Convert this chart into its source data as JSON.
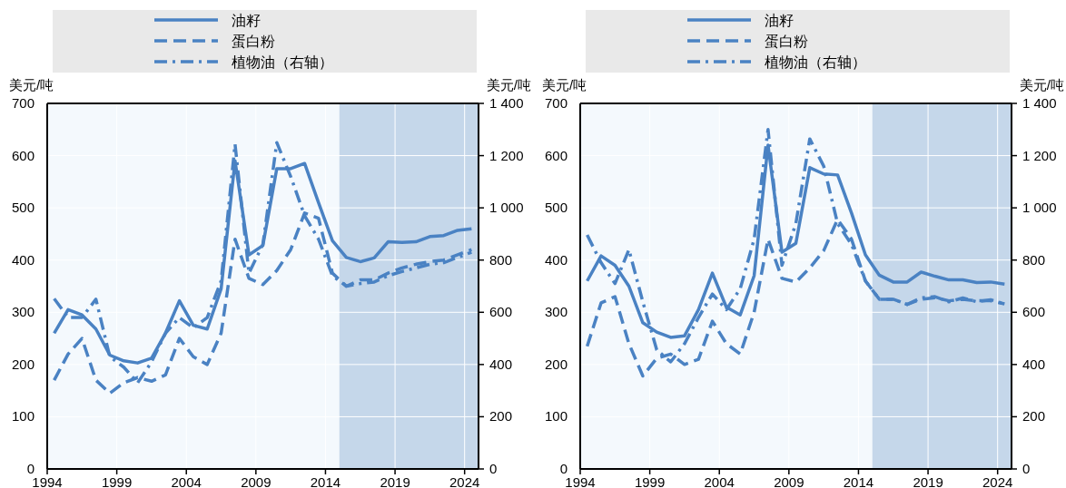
{
  "chart_data": [
    {
      "type": "line",
      "ylabel": "美元/吨",
      "y2label": "美元/吨",
      "legend": "top",
      "grid": true,
      "xlim": [
        1994,
        2025
      ],
      "xticks": [
        1994,
        1999,
        2004,
        2009,
        2014,
        2019,
        2024
      ],
      "ylim": [
        0,
        700
      ],
      "yticks": [
        0,
        100,
        200,
        300,
        400,
        500,
        600,
        700
      ],
      "y2lim": [
        0,
        1400
      ],
      "y2ticks": [
        0,
        200,
        400,
        600,
        800,
        {
          "value": 1000,
          "label": "1 000"
        },
        {
          "value": 1200,
          "label": "1 200"
        },
        {
          "value": 1400,
          "label": "1 400"
        }
      ],
      "x": [
        1994.5,
        1995.5,
        1996.5,
        1997.5,
        1998.5,
        1999.5,
        2000.5,
        2001.5,
        2002.5,
        2003.5,
        2004.5,
        2005.5,
        2006.5,
        2007.5,
        2008.5,
        2009.5,
        2010.5,
        2011.5,
        2012.5,
        2013.5,
        2014.5,
        2015.5,
        2016.5,
        2017.5,
        2018.5,
        2019.5,
        2020.5,
        2021.5,
        2022.5,
        2023.5,
        2024.5
      ],
      "bands": [
        {
          "axis": "x",
          "from": 2015,
          "to": 2025,
          "color": "#c5d7ea"
        }
      ],
      "series": [
        {
          "name": "油籽",
          "color": "#4a82c3",
          "line_style": "solid",
          "values": [
            260,
            305,
            295,
            268,
            218,
            207,
            203,
            212,
            260,
            322,
            275,
            268,
            345,
            590,
            410,
            428,
            575,
            575,
            585,
            510,
            437,
            405,
            397,
            404,
            435,
            434,
            435,
            445,
            447,
            457,
            460
          ]
        },
        {
          "name": "蛋白粉",
          "color": "#4a82c3",
          "line_style": "dashed",
          "values": [
            170,
            220,
            250,
            170,
            145,
            165,
            175,
            168,
            180,
            250,
            215,
            200,
            260,
            440,
            365,
            353,
            380,
            420,
            490,
            480,
            375,
            350,
            362,
            362,
            375,
            385,
            392,
            397,
            400,
            410,
            420
          ]
        },
        {
          "name": "植物油（右轴）",
          "color": "#4a82c3",
          "line_style": "dashdot",
          "axis": "y2",
          "values": [
            652,
            580,
            580,
            650,
            430,
            390,
            330,
            410,
            520,
            580,
            540,
            580,
            720,
            1244,
            750,
            860,
            1250,
            1120,
            970,
            880,
            740,
            700,
            710,
            716,
            740,
            756,
            770,
            784,
            790,
            810,
            830
          ]
        }
      ]
    },
    {
      "type": "line",
      "ylabel": "美元/吨",
      "y2label": "美元/吨",
      "legend": "top",
      "grid": true,
      "xlim": [
        1994,
        2025
      ],
      "xticks": [
        1994,
        1999,
        2004,
        2009,
        2014,
        2019,
        2024
      ],
      "ylim": [
        0,
        700
      ],
      "yticks": [
        0,
        100,
        200,
        300,
        400,
        500,
        600,
        700
      ],
      "y2lim": [
        0,
        1400
      ],
      "y2ticks": [
        0,
        200,
        400,
        600,
        800,
        {
          "value": 1000,
          "label": "1 000"
        },
        {
          "value": 1200,
          "label": "1 200"
        },
        {
          "value": 1400,
          "label": "1 400"
        }
      ],
      "x": [
        1994.5,
        1995.5,
        1996.5,
        1997.5,
        1998.5,
        1999.5,
        2000.5,
        2001.5,
        2002.5,
        2003.5,
        2004.5,
        2005.5,
        2006.5,
        2007.5,
        2008.5,
        2009.5,
        2010.5,
        2011.5,
        2012.5,
        2013.5,
        2014.5,
        2015.5,
        2016.5,
        2017.5,
        2018.5,
        2019.5,
        2020.5,
        2021.5,
        2022.5,
        2023.5,
        2024.5
      ],
      "bands": [
        {
          "axis": "x",
          "from": 2015,
          "to": 2025,
          "color": "#c5d7ea"
        }
      ],
      "series": [
        {
          "name": "油籽",
          "color": "#4a82c3",
          "line_style": "solid",
          "values": [
            360,
            408,
            390,
            350,
            280,
            262,
            252,
            255,
            305,
            375,
            310,
            295,
            370,
            620,
            415,
            432,
            577,
            565,
            563,
            490,
            410,
            371,
            358,
            358,
            377,
            369,
            362,
            362,
            357,
            358,
            354
          ]
        },
        {
          "name": "蛋白粉",
          "color": "#4a82c3",
          "line_style": "dashed",
          "values": [
            235,
            318,
            330,
            240,
            178,
            212,
            220,
            200,
            210,
            283,
            240,
            220,
            300,
            440,
            365,
            358,
            385,
            418,
            478,
            440,
            360,
            325,
            325,
            315,
            325,
            328,
            322,
            325,
            322,
            322,
            316
          ]
        },
        {
          "name": "植物油（右轴）",
          "color": "#4a82c3",
          "line_style": "dashdot",
          "axis": "y2",
          "values": [
            896,
            790,
            710,
            840,
            640,
            456,
            410,
            480,
            580,
            670,
            610,
            690,
            880,
            1300,
            780,
            940,
            1264,
            1160,
            940,
            860,
            720,
            650,
            650,
            630,
            655,
            660,
            640,
            655,
            640,
            648,
            632
          ]
        }
      ]
    }
  ]
}
